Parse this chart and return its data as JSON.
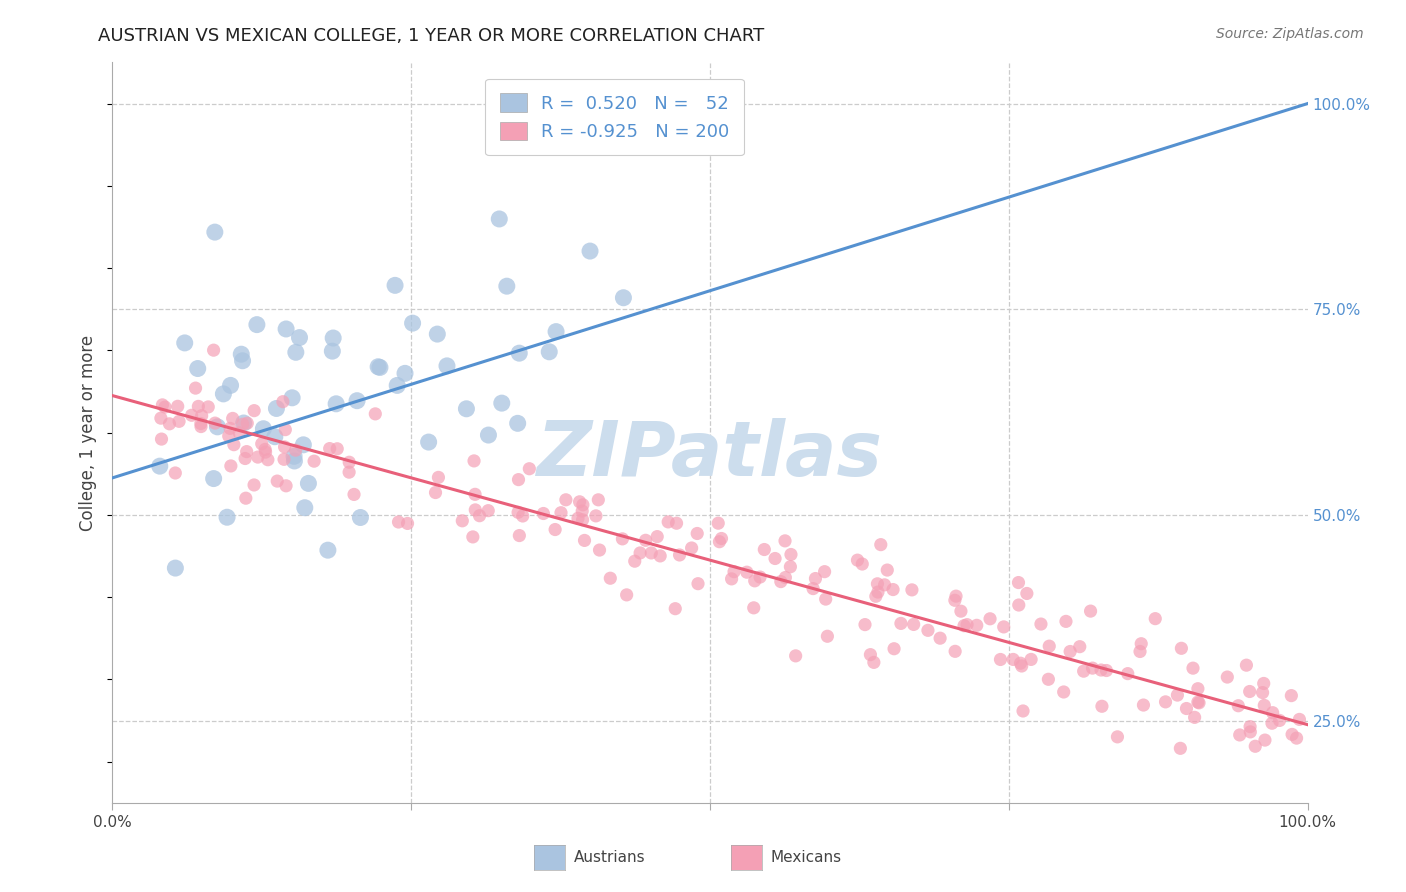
{
  "title": "AUSTRIAN VS MEXICAN COLLEGE, 1 YEAR OR MORE CORRELATION CHART",
  "source": "Source: ZipAtlas.com",
  "ylabel": "College, 1 year or more",
  "xlim": [
    0.0,
    1.0
  ],
  "ylim": [
    0.15,
    1.05
  ],
  "xticks": [
    0.0,
    0.25,
    0.5,
    0.75,
    1.0
  ],
  "xtick_labels": [
    "0.0%",
    "",
    "",
    "",
    "100.0%"
  ],
  "ytick_positions_right": [
    0.25,
    0.5,
    0.75,
    1.0
  ],
  "ytick_labels_right": [
    "25.0%",
    "50.0%",
    "75.0%",
    "100.0%"
  ],
  "austrian_R": 0.52,
  "austrian_N": 52,
  "mexican_R": -0.925,
  "mexican_N": 200,
  "austrian_color": "#aac4e0",
  "mexican_color": "#f4a0b5",
  "austrian_line_color": "#5591d0",
  "mexican_line_color": "#e8607a",
  "watermark_text": "ZIPatlas",
  "watermark_color": "#ccdded",
  "background_color": "#ffffff",
  "grid_color": "#cccccc",
  "title_fontsize": 13,
  "axis_label_fontsize": 12,
  "tick_fontsize": 11,
  "legend_fontsize": 13,
  "source_fontsize": 10,
  "seed": 42,
  "austrian_line_x0": 0.0,
  "austrian_line_y0": 0.545,
  "austrian_line_x1": 1.0,
  "austrian_line_y1": 1.0,
  "mexican_line_x0": 0.0,
  "mexican_line_x1": 1.0,
  "mexican_line_y0": 0.645,
  "mexican_line_y1": 0.245
}
